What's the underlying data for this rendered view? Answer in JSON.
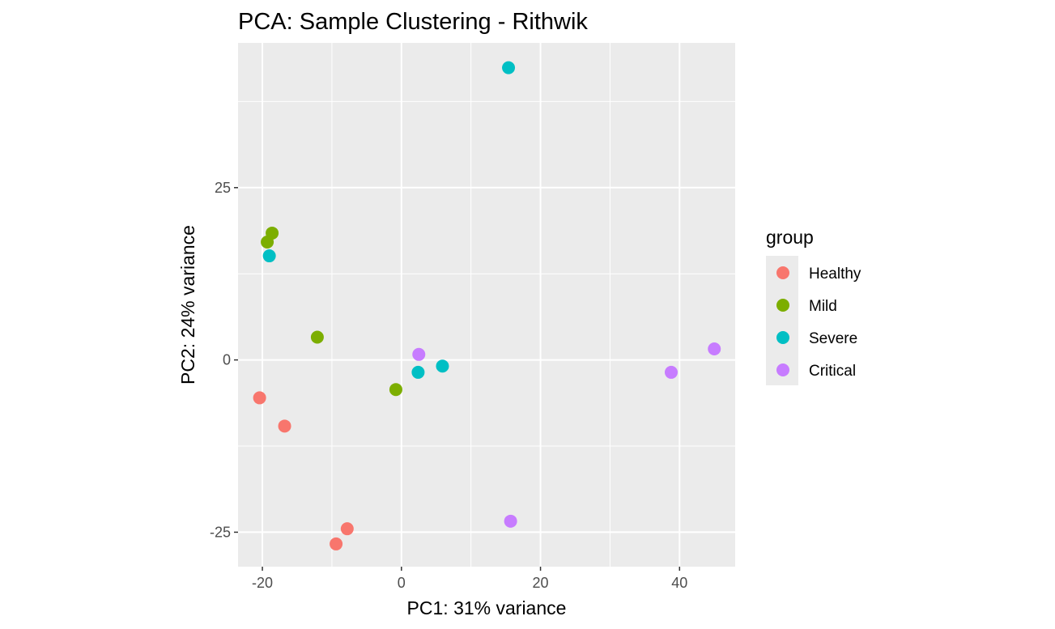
{
  "chart_data": {
    "type": "scatter",
    "title": "PCA: Sample Clustering - Rithwik",
    "xlabel": "PC1: 31% variance",
    "ylabel": "PC2: 24% variance",
    "xlim": [
      -23.5,
      48
    ],
    "ylim": [
      -30,
      46
    ],
    "x_ticks": [
      -20,
      0,
      20,
      40
    ],
    "y_ticks": [
      -25,
      0,
      25
    ],
    "x_tick_labels": [
      "-20",
      "0",
      "20",
      "40"
    ],
    "y_tick_labels": [
      "-25",
      "0",
      "25"
    ],
    "grid": true,
    "background": "#ebebeb",
    "legend": {
      "title": "group",
      "position": "right"
    },
    "series": [
      {
        "name": "Healthy",
        "color": "#f8766d",
        "points": [
          [
            -20.4,
            -5.5
          ],
          [
            -16.8,
            -9.6
          ],
          [
            -7.8,
            -24.5
          ],
          [
            -9.4,
            -26.7
          ]
        ]
      },
      {
        "name": "Mild",
        "color": "#7cae00",
        "points": [
          [
            -19.3,
            17.1
          ],
          [
            -18.6,
            18.4
          ],
          [
            -12.1,
            3.3
          ],
          [
            -0.8,
            -4.3
          ]
        ]
      },
      {
        "name": "Severe",
        "color": "#00bfc4",
        "points": [
          [
            -19.0,
            15.1
          ],
          [
            2.4,
            -1.8
          ],
          [
            5.9,
            -0.9
          ],
          [
            15.4,
            42.4
          ]
        ]
      },
      {
        "name": "Critical",
        "color": "#c77cff",
        "points": [
          [
            2.5,
            0.8
          ],
          [
            15.7,
            -23.4
          ],
          [
            38.8,
            -1.8
          ],
          [
            45.0,
            1.6
          ]
        ]
      }
    ]
  }
}
